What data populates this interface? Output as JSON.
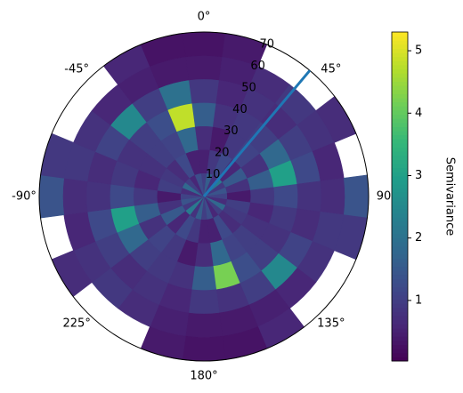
{
  "chart_data": {
    "type": "polar_contour",
    "theta_zero": "N",
    "theta_direction": "clockwise",
    "grid": false,
    "theta_edges": [
      -7.5,
      7.5,
      22.5,
      37.5,
      52.5,
      67.5,
      82.5,
      97.5,
      112.5,
      127.5,
      142.5,
      157.5,
      172.5,
      187.5,
      202.5,
      217.5,
      232.5,
      247.5,
      262.5,
      277.5,
      292.5,
      307.5,
      322.5,
      337.5,
      352.5
    ],
    "r_edges": [
      0,
      10,
      20,
      30,
      40,
      50,
      60,
      70
    ],
    "rlim": [
      0,
      70
    ],
    "rticks": [
      10,
      20,
      30,
      40,
      50,
      60,
      70
    ],
    "rlabel_angle": 22.5,
    "thetaticks": [
      {
        "value": 0,
        "label": "0°"
      },
      {
        "value": 45,
        "label": "45°"
      },
      {
        "value": 90,
        "label": "90"
      },
      {
        "value": 135,
        "label": "135°"
      },
      {
        "value": 180,
        "label": "180°"
      },
      {
        "value": 225,
        "label": "225°"
      },
      {
        "value": 270,
        "label": "-90°"
      },
      {
        "value": 315,
        "label": "-45°"
      }
    ],
    "values": [
      [
        1.0,
        1.6,
        0.8,
        2.2,
        0.9,
        1.4,
        1.1,
        0.7,
        1.8,
        1.0,
        0.6,
        1.3,
        1.0,
        1.6,
        0.8,
        2.2,
        0.9,
        1.4,
        1.1,
        0.7,
        1.8,
        1.0,
        0.6,
        1.3
      ],
      [
        0.5,
        0.9,
        1.2,
        0.6,
        1.5,
        0.8,
        0.4,
        1.0,
        0.9,
        0.7,
        1.2,
        0.5,
        0.5,
        0.9,
        1.2,
        0.6,
        1.5,
        0.8,
        0.4,
        1.0,
        0.9,
        0.7,
        1.2,
        0.5
      ],
      [
        0.7,
        0.4,
        0.9,
        1.1,
        0.8,
        1.6,
        0.9,
        0.6,
        0.8,
        1.0,
        1.1,
        1.8,
        0.7,
        0.4,
        0.9,
        1.1,
        0.8,
        1.6,
        0.9,
        0.6,
        0.8,
        1.0,
        1.1,
        1.8
      ],
      [
        1.6,
        0.8,
        0.9,
        1.0,
        1.8,
        3.0,
        1.2,
        0.9,
        0.8,
        1.0,
        1.3,
        4.2,
        1.6,
        0.8,
        0.9,
        1.0,
        1.8,
        3.0,
        1.2,
        0.9,
        0.8,
        1.0,
        1.3,
        4.8
      ],
      [
        0.9,
        0.6,
        0.8,
        0.7,
        1.0,
        1.2,
        0.8,
        0.7,
        1.1,
        2.5,
        1.0,
        0.8,
        0.9,
        0.6,
        0.8,
        0.7,
        1.0,
        1.2,
        0.8,
        0.7,
        1.1,
        2.5,
        1.0,
        2.0
      ],
      [
        0.4,
        0.5,
        0.7,
        0.9,
        0.8,
        0.6,
        0.7,
        0.9,
        0.8,
        0.6,
        0.5,
        0.4,
        0.4,
        0.5,
        0.7,
        0.9,
        0.8,
        0.6,
        0.7,
        0.9,
        0.8,
        0.6,
        0.5,
        0.4
      ],
      [
        0.3,
        0.4,
        null,
        null,
        0.7,
        null,
        1.4,
        0.9,
        null,
        null,
        0.6,
        0.3,
        0.3,
        0.4,
        null,
        null,
        0.7,
        null,
        1.4,
        0.9,
        null,
        null,
        0.6,
        0.3
      ]
    ],
    "direction": {
      "theta": 40,
      "color": "#1f77b4"
    },
    "colormap": [
      "#440154",
      "#482878",
      "#3e4989",
      "#31688e",
      "#26828e",
      "#1f9e89",
      "#35b779",
      "#6ece58",
      "#b5de2b",
      "#fde725"
    ],
    "clim": [
      0.03,
      5.3
    ],
    "colorbar_ticks": [
      1,
      2,
      3,
      4,
      5
    ],
    "colorbar_label": "Semivariance"
  }
}
